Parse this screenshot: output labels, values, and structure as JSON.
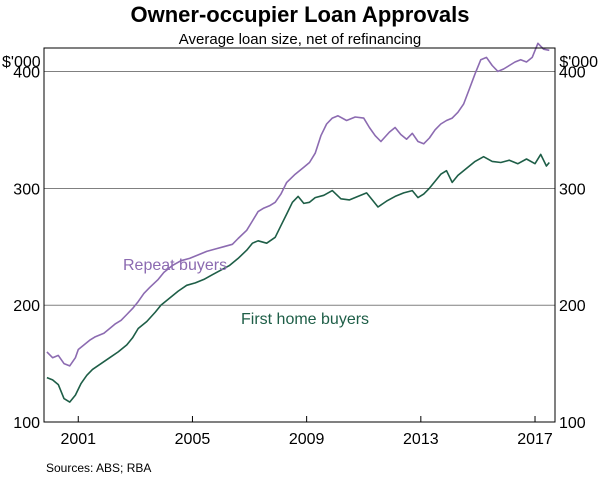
{
  "chart_data": {
    "type": "line",
    "title": "Owner-occupier Loan Approvals",
    "subtitle": "Average loan size, net of refinancing",
    "y_unit_left": "$'000",
    "y_unit_right": "$'000",
    "ylim": [
      100,
      420
    ],
    "y_ticks": [
      100,
      200,
      300,
      400
    ],
    "xlim": [
      1999.8,
      2017.7
    ],
    "x_ticks": [
      2001,
      2005,
      2009,
      2013,
      2017
    ],
    "grid": true,
    "source": "Sources: ABS; RBA",
    "series": [
      {
        "name": "Repeat buyers",
        "color": "#8C6BB1",
        "points": [
          [
            1999.9,
            160
          ],
          [
            2000.1,
            155
          ],
          [
            2000.3,
            157
          ],
          [
            2000.5,
            150
          ],
          [
            2000.7,
            148
          ],
          [
            2000.9,
            155
          ],
          [
            2001.0,
            162
          ],
          [
            2001.2,
            166
          ],
          [
            2001.4,
            170
          ],
          [
            2001.6,
            173
          ],
          [
            2001.9,
            176
          ],
          [
            2002.1,
            180
          ],
          [
            2002.3,
            184
          ],
          [
            2002.5,
            187
          ],
          [
            2002.7,
            192
          ],
          [
            2002.9,
            197
          ],
          [
            2003.1,
            203
          ],
          [
            2003.3,
            210
          ],
          [
            2003.5,
            215
          ],
          [
            2003.8,
            222
          ],
          [
            2004.0,
            228
          ],
          [
            2004.3,
            234
          ],
          [
            2004.6,
            238
          ],
          [
            2004.9,
            240
          ],
          [
            2005.2,
            243
          ],
          [
            2005.5,
            246
          ],
          [
            2005.8,
            248
          ],
          [
            2006.1,
            250
          ],
          [
            2006.4,
            252
          ],
          [
            2006.6,
            257
          ],
          [
            2006.9,
            264
          ],
          [
            2007.1,
            272
          ],
          [
            2007.3,
            280
          ],
          [
            2007.5,
            283
          ],
          [
            2007.7,
            285
          ],
          [
            2007.9,
            288
          ],
          [
            2008.1,
            295
          ],
          [
            2008.3,
            305
          ],
          [
            2008.6,
            312
          ],
          [
            2008.9,
            318
          ],
          [
            2009.1,
            322
          ],
          [
            2009.3,
            330
          ],
          [
            2009.5,
            345
          ],
          [
            2009.7,
            355
          ],
          [
            2009.9,
            360
          ],
          [
            2010.1,
            362
          ],
          [
            2010.4,
            358
          ],
          [
            2010.7,
            361
          ],
          [
            2011.0,
            360
          ],
          [
            2011.2,
            352
          ],
          [
            2011.4,
            345
          ],
          [
            2011.6,
            340
          ],
          [
            2011.9,
            348
          ],
          [
            2012.1,
            352
          ],
          [
            2012.3,
            346
          ],
          [
            2012.5,
            342
          ],
          [
            2012.7,
            347
          ],
          [
            2012.9,
            340
          ],
          [
            2013.1,
            338
          ],
          [
            2013.3,
            343
          ],
          [
            2013.5,
            350
          ],
          [
            2013.7,
            355
          ],
          [
            2013.9,
            358
          ],
          [
            2014.1,
            360
          ],
          [
            2014.3,
            365
          ],
          [
            2014.5,
            372
          ],
          [
            2014.7,
            385
          ],
          [
            2014.9,
            398
          ],
          [
            2015.1,
            410
          ],
          [
            2015.3,
            412
          ],
          [
            2015.5,
            405
          ],
          [
            2015.7,
            400
          ],
          [
            2015.9,
            402
          ],
          [
            2016.1,
            405
          ],
          [
            2016.3,
            408
          ],
          [
            2016.5,
            410
          ],
          [
            2016.7,
            408
          ],
          [
            2016.9,
            412
          ],
          [
            2017.1,
            424
          ],
          [
            2017.3,
            419
          ],
          [
            2017.5,
            418
          ]
        ]
      },
      {
        "name": "First home buyers",
        "color": "#1E5E47",
        "points": [
          [
            1999.9,
            138
          ],
          [
            2000.1,
            136
          ],
          [
            2000.3,
            132
          ],
          [
            2000.5,
            120
          ],
          [
            2000.7,
            117
          ],
          [
            2000.9,
            123
          ],
          [
            2001.1,
            133
          ],
          [
            2001.3,
            140
          ],
          [
            2001.5,
            145
          ],
          [
            2001.8,
            150
          ],
          [
            2002.1,
            155
          ],
          [
            2002.4,
            160
          ],
          [
            2002.7,
            166
          ],
          [
            2002.9,
            172
          ],
          [
            2003.1,
            180
          ],
          [
            2003.4,
            186
          ],
          [
            2003.7,
            194
          ],
          [
            2003.9,
            200
          ],
          [
            2004.2,
            206
          ],
          [
            2004.5,
            212
          ],
          [
            2004.8,
            217
          ],
          [
            2005.1,
            219
          ],
          [
            2005.4,
            222
          ],
          [
            2005.7,
            226
          ],
          [
            2006.0,
            230
          ],
          [
            2006.3,
            234
          ],
          [
            2006.6,
            240
          ],
          [
            2006.9,
            247
          ],
          [
            2007.1,
            253
          ],
          [
            2007.3,
            255
          ],
          [
            2007.6,
            253
          ],
          [
            2007.9,
            258
          ],
          [
            2008.1,
            268
          ],
          [
            2008.3,
            278
          ],
          [
            2008.5,
            288
          ],
          [
            2008.7,
            293
          ],
          [
            2008.9,
            287
          ],
          [
            2009.1,
            288
          ],
          [
            2009.3,
            292
          ],
          [
            2009.6,
            294
          ],
          [
            2009.9,
            298
          ],
          [
            2010.2,
            291
          ],
          [
            2010.5,
            290
          ],
          [
            2010.8,
            293
          ],
          [
            2011.1,
            296
          ],
          [
            2011.3,
            290
          ],
          [
            2011.5,
            284
          ],
          [
            2011.8,
            289
          ],
          [
            2012.1,
            293
          ],
          [
            2012.4,
            296
          ],
          [
            2012.7,
            298
          ],
          [
            2012.9,
            292
          ],
          [
            2013.1,
            295
          ],
          [
            2013.3,
            300
          ],
          [
            2013.5,
            306
          ],
          [
            2013.7,
            312
          ],
          [
            2013.9,
            315
          ],
          [
            2014.1,
            305
          ],
          [
            2014.3,
            311
          ],
          [
            2014.6,
            317
          ],
          [
            2014.9,
            323
          ],
          [
            2015.2,
            327
          ],
          [
            2015.5,
            323
          ],
          [
            2015.8,
            322
          ],
          [
            2016.1,
            324
          ],
          [
            2016.4,
            321
          ],
          [
            2016.7,
            325
          ],
          [
            2017.0,
            321
          ],
          [
            2017.2,
            329
          ],
          [
            2017.4,
            319
          ],
          [
            2017.5,
            322
          ]
        ]
      }
    ]
  }
}
